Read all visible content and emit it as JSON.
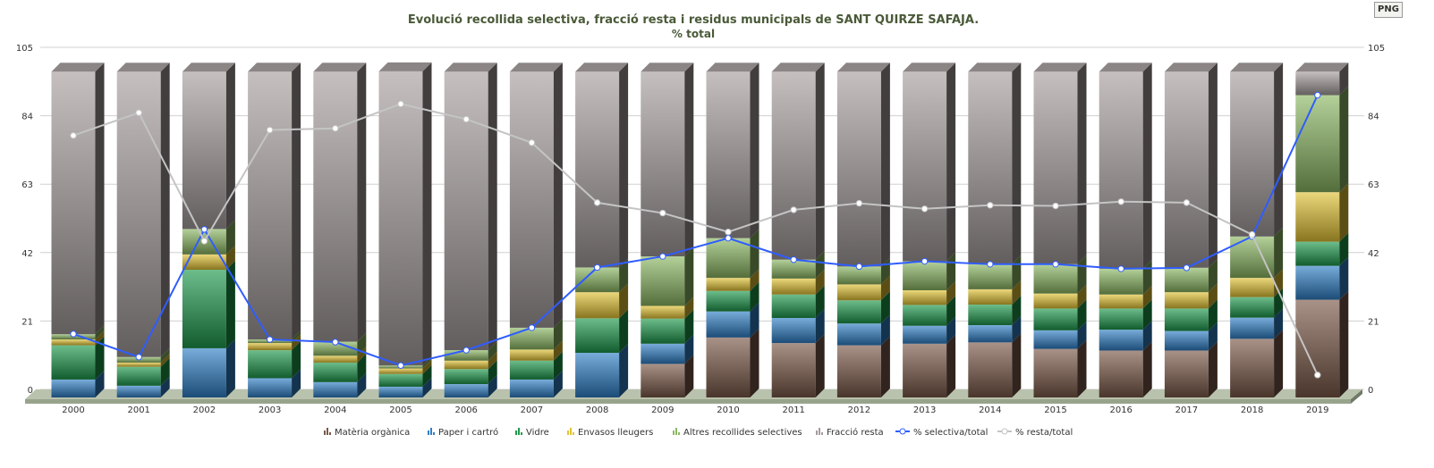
{
  "toolbar": {
    "png_label": "PNG"
  },
  "chart_data": {
    "type": "bar",
    "stacked": true,
    "title": "Evolució recollida selectiva, fracció resta i residus municipals de SANT QUIRZE SAFAJA.",
    "subtitle": "% total",
    "xlabel": "",
    "ylabel": "",
    "ylim": [
      0,
      105
    ],
    "yticks": [
      0,
      21,
      42,
      63,
      84,
      105
    ],
    "grid": true,
    "legend_position": "bottom",
    "categories": [
      "2000",
      "2001",
      "2002",
      "2003",
      "2004",
      "2005",
      "2006",
      "2007",
      "2008",
      "2009",
      "2010",
      "2011",
      "2012",
      "2013",
      "2014",
      "2015",
      "2016",
      "2017",
      "2018",
      "2019"
    ],
    "series": [
      {
        "name": "Matèria orgànica",
        "kind": "bar",
        "color": "#7a5848",
        "values": [
          0,
          0,
          0,
          0,
          0,
          0,
          0,
          0,
          0,
          10.3,
          18.4,
          16.7,
          16.0,
          16.5,
          16.9,
          14.9,
          14.4,
          14.4,
          18.0,
          30.0
        ]
      },
      {
        "name": "Paper i cartró",
        "kind": "bar",
        "color": "#2f7fc6",
        "values": [
          5.5,
          3.6,
          15.1,
          5.9,
          4.7,
          3.3,
          4.1,
          5.5,
          13.7,
          6.2,
          8.0,
          7.7,
          6.7,
          5.5,
          5.3,
          5.7,
          6.4,
          6.0,
          6.5,
          10.4
        ]
      },
      {
        "name": "Vidre",
        "kind": "bar",
        "color": "#1e9a4c",
        "values": [
          10.5,
          5.8,
          24.1,
          8.6,
          6.0,
          3.9,
          4.6,
          5.8,
          10.6,
          7.7,
          6.3,
          7.2,
          7.1,
          6.4,
          6.3,
          6.7,
          6.5,
          6.9,
          6.3,
          7.4
        ]
      },
      {
        "name": "Envasos lleugers",
        "kind": "bar",
        "color": "#e2c334",
        "values": [
          1.8,
          1.3,
          4.7,
          2.2,
          2.1,
          1.7,
          2.6,
          3.4,
          8.0,
          3.9,
          4.0,
          4.9,
          4.9,
          4.5,
          4.7,
          4.6,
          4.3,
          5.0,
          5.9,
          15.2
        ]
      },
      {
        "name": "Altres recollides selectives",
        "kind": "bar",
        "color": "#8cb863",
        "values": [
          1.6,
          1.7,
          7.8,
          1.1,
          4.3,
          0.9,
          3.2,
          6.7,
          7.6,
          15.2,
          12.2,
          5.8,
          5.5,
          8.9,
          7.7,
          9.0,
          7.9,
          7.5,
          12.7,
          29.8
        ]
      },
      {
        "name": "Fracció resta",
        "kind": "bar",
        "color": "#a59c9c",
        "values": [
          80.6,
          87.6,
          48.3,
          82.2,
          82.9,
          90.3,
          85.5,
          78.6,
          60.1,
          56.7,
          51.1,
          57.7,
          59.8,
          58.2,
          59.1,
          59.1,
          60.5,
          60.2,
          50.6,
          7.2
        ]
      },
      {
        "name": "% selectiva/total",
        "kind": "line",
        "color": "#2f5dff",
        "values": [
          19.5,
          12.4,
          51.6,
          17.8,
          17.0,
          9.8,
          14.5,
          21.4,
          39.9,
          43.3,
          48.9,
          42.3,
          40.2,
          41.8,
          40.9,
          40.9,
          39.5,
          39.8,
          49.4,
          92.8
        ]
      },
      {
        "name": "% resta/total",
        "kind": "line",
        "color": "#c4c4c4",
        "values": [
          80.4,
          87.4,
          48.0,
          82.1,
          82.6,
          90.1,
          85.4,
          78.2,
          59.8,
          56.6,
          50.8,
          57.6,
          59.6,
          57.9,
          59.0,
          58.8,
          60.1,
          59.8,
          50.0,
          6.9
        ]
      }
    ]
  }
}
